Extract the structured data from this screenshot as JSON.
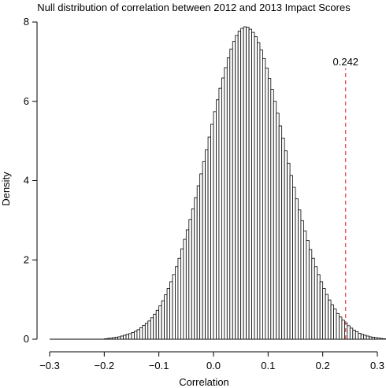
{
  "chart_data": {
    "type": "bar",
    "title": "Null distribution of correlation between 2012 and 2013 Impact Scores",
    "xlabel": "Correlation",
    "ylabel": "Density",
    "xlim": [
      -0.3,
      0.3
    ],
    "ylim": [
      0,
      8
    ],
    "xticks": [
      "−0.3",
      "−0.2",
      "−0.1",
      "0.0",
      "0.1",
      "0.2",
      "0.3"
    ],
    "yticks": [
      "0",
      "2",
      "4",
      "6",
      "8"
    ],
    "bin_width": 0.005,
    "bin_start": -0.2,
    "densities": [
      0.01,
      0.02,
      0.03,
      0.04,
      0.05,
      0.06,
      0.08,
      0.1,
      0.12,
      0.14,
      0.17,
      0.2,
      0.24,
      0.29,
      0.35,
      0.4,
      0.46,
      0.54,
      0.63,
      0.73,
      0.84,
      0.97,
      1.12,
      1.28,
      1.45,
      1.63,
      1.83,
      2.04,
      2.28,
      2.52,
      2.76,
      3.02,
      3.29,
      3.57,
      3.87,
      4.17,
      4.48,
      4.78,
      5.1,
      5.42,
      5.74,
      6.04,
      6.33,
      6.59,
      6.85,
      7.1,
      7.32,
      7.51,
      7.66,
      7.77,
      7.84,
      7.88,
      7.87,
      7.82,
      7.74,
      7.63,
      7.48,
      7.3,
      7.08,
      6.84,
      6.58,
      6.3,
      6.0,
      5.7,
      5.38,
      5.07,
      4.75,
      4.44,
      4.13,
      3.83,
      3.54,
      3.26,
      2.99,
      2.73,
      2.49,
      2.26,
      2.04,
      1.83,
      1.63,
      1.45,
      1.28,
      1.13,
      0.99,
      0.87,
      0.76,
      0.65,
      0.56,
      0.48,
      0.41,
      0.34,
      0.28,
      0.23,
      0.19,
      0.15,
      0.12,
      0.1,
      0.08,
      0.06,
      0.05,
      0.04,
      0.03,
      0.02,
      0.01,
      0.01
    ],
    "observed_value": 0.242,
    "observed_label": "0.242",
    "observed_color": "#e8141e"
  }
}
